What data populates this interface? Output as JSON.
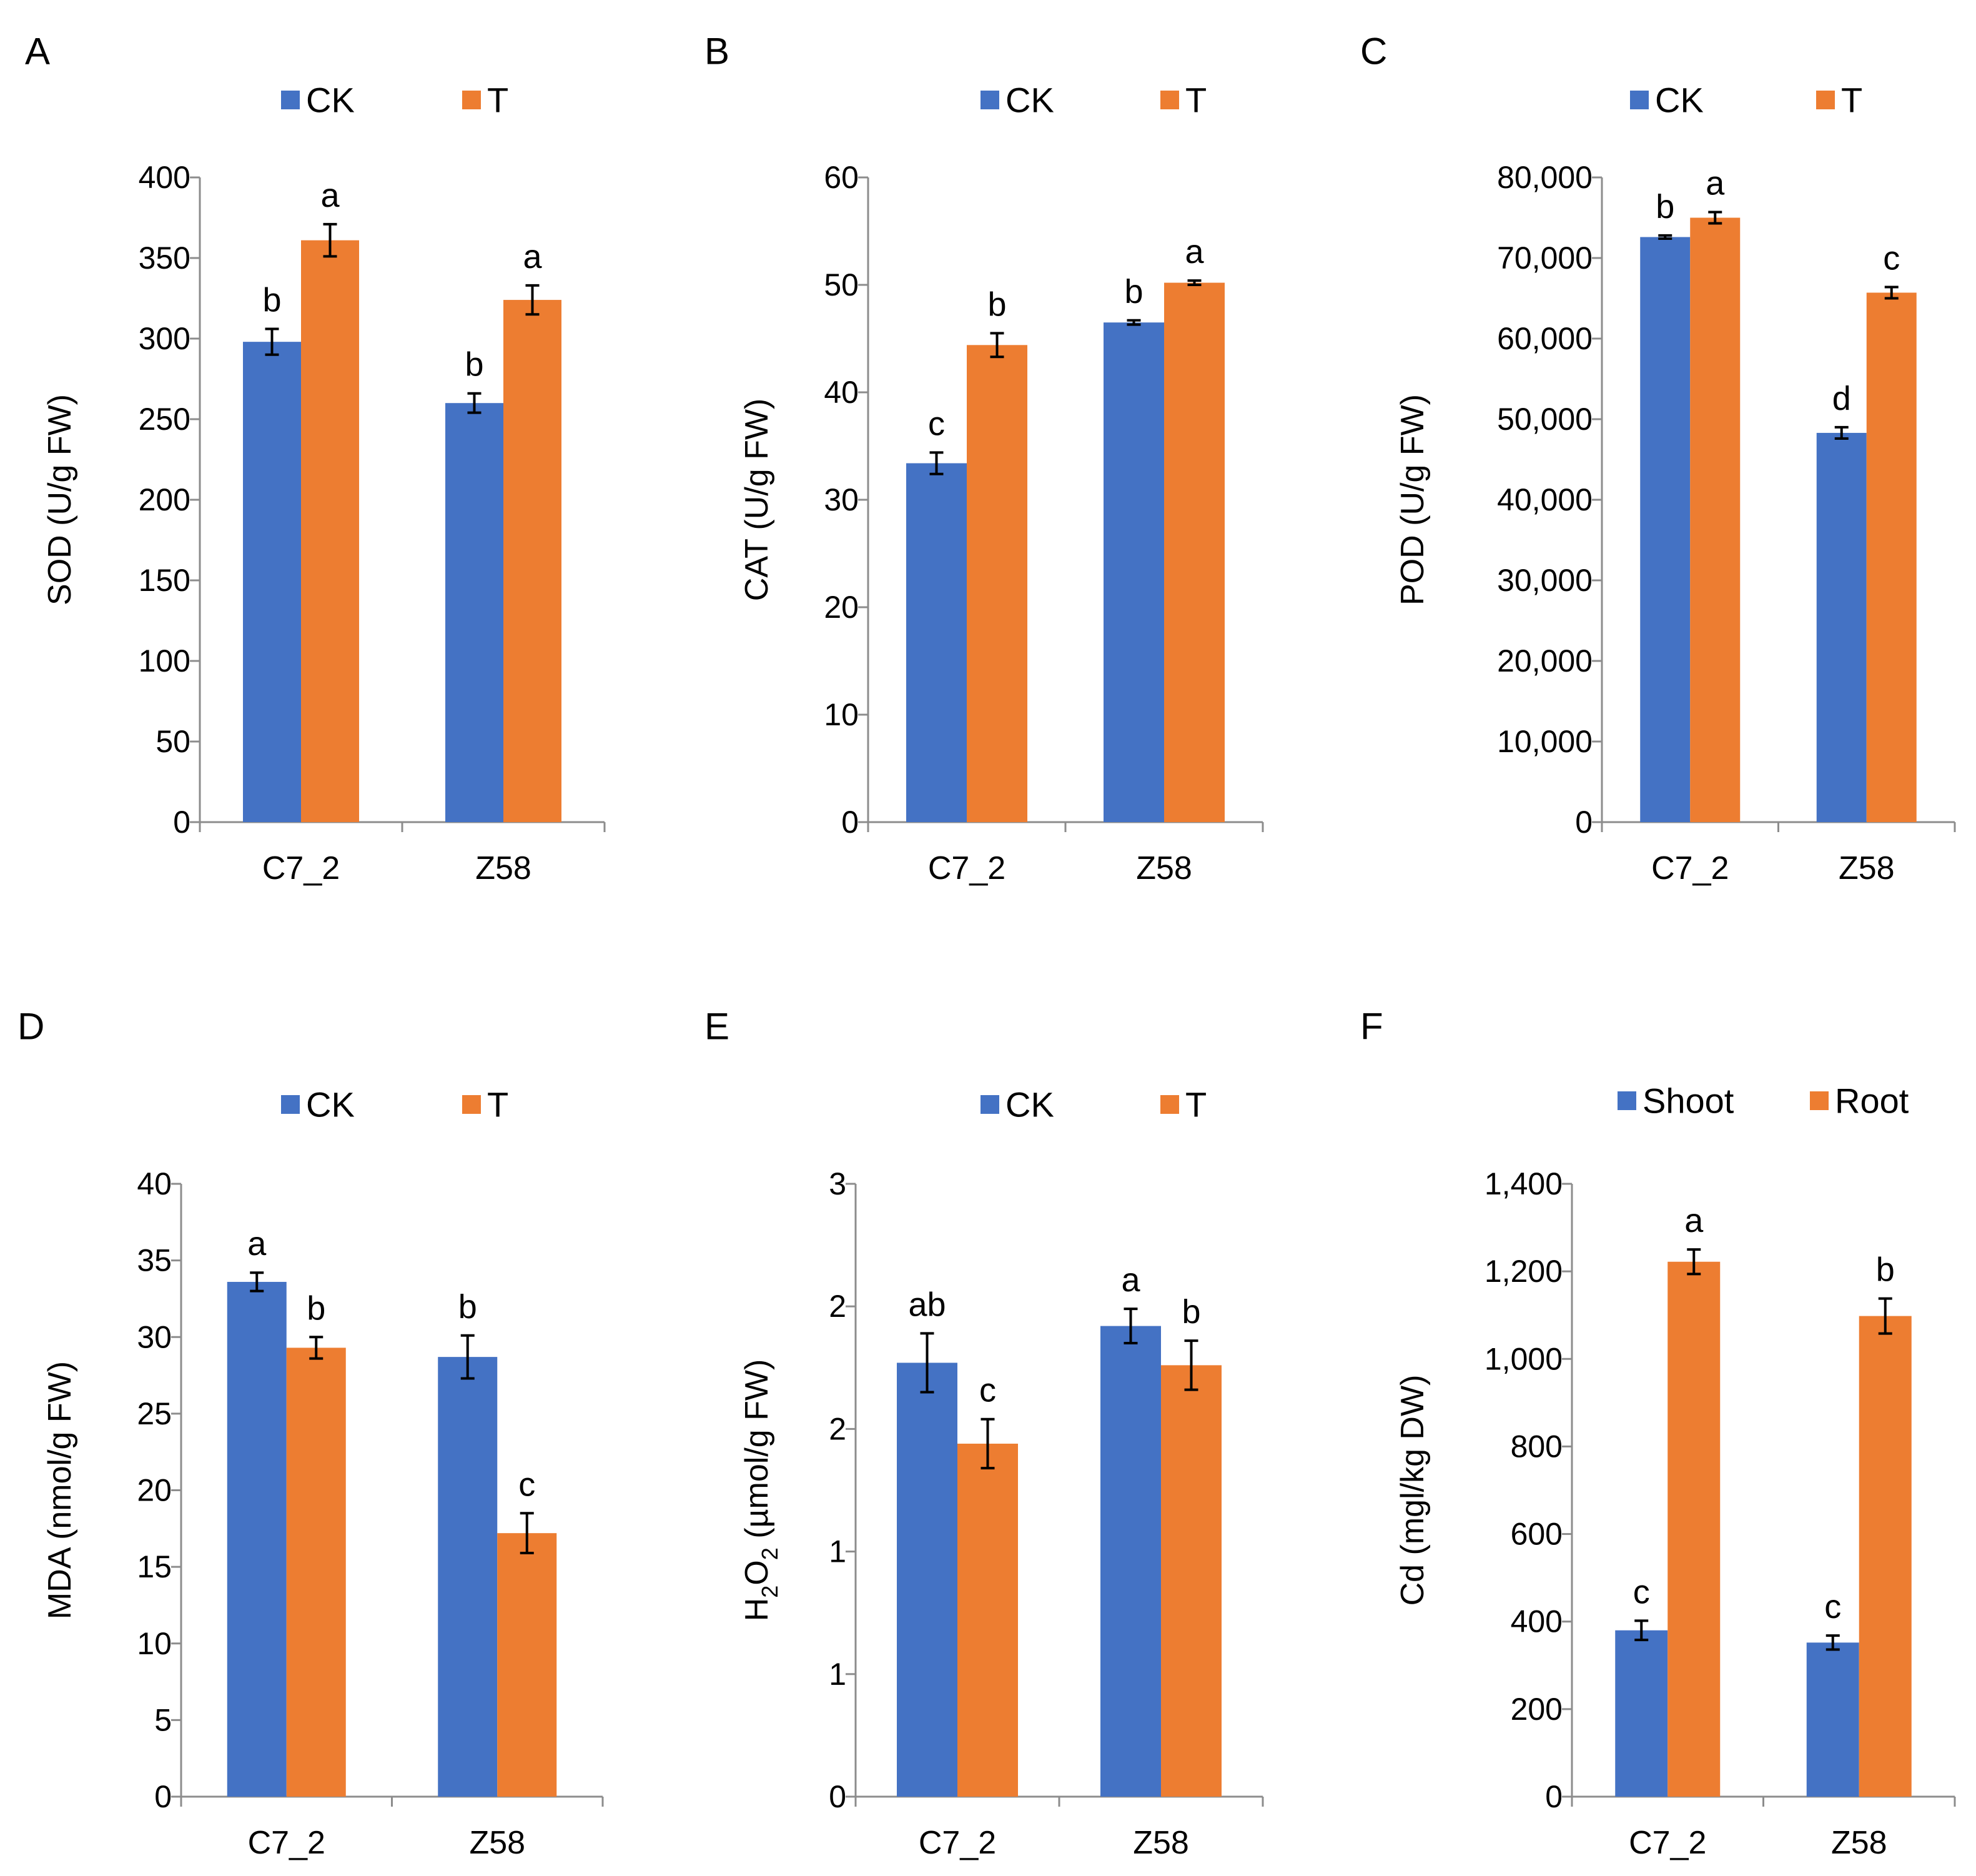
{
  "chart_data": [
    {
      "panel": "A",
      "type": "bar",
      "categories": [
        "C7_2",
        "Z58"
      ],
      "series": [
        {
          "name": "CK",
          "values": [
            298,
            260
          ],
          "errors": [
            8,
            6
          ],
          "letters": [
            "b",
            "b"
          ]
        },
        {
          "name": "T",
          "values": [
            361,
            324
          ],
          "errors": [
            10,
            9
          ],
          "letters": [
            "a",
            "a"
          ]
        }
      ],
      "ylabel": "SOD (U/g FW)",
      "ylim": [
        0,
        400
      ],
      "ticks": [
        0,
        50,
        100,
        150,
        200,
        250,
        300,
        350,
        400
      ],
      "tick_labels": [
        "0",
        "50",
        "100",
        "150",
        "200",
        "250",
        "300",
        "350",
        "400"
      ],
      "legend": "top"
    },
    {
      "panel": "B",
      "type": "bar",
      "categories": [
        "C7_2",
        "Z58"
      ],
      "series": [
        {
          "name": "CK",
          "values": [
            33.4,
            46.5
          ],
          "errors": [
            1,
            0.2
          ],
          "letters": [
            "c",
            "b"
          ]
        },
        {
          "name": "T",
          "values": [
            44.4,
            50.2
          ],
          "errors": [
            1.1,
            0.2
          ],
          "letters": [
            "b",
            "a"
          ]
        }
      ],
      "ylabel": "CAT (U/g FW)",
      "ylim": [
        0,
        60
      ],
      "ticks": [
        0,
        10,
        20,
        30,
        40,
        50,
        60
      ],
      "tick_labels": [
        "0",
        "10",
        "20",
        "30",
        "40",
        "50",
        "60"
      ],
      "legend": "top"
    },
    {
      "panel": "C",
      "type": "bar",
      "categories": [
        "C7_2",
        "Z58"
      ],
      "series": [
        {
          "name": "CK",
          "values": [
            72600,
            48300
          ],
          "errors": [
            200,
            700
          ],
          "letters": [
            "b",
            "d"
          ]
        },
        {
          "name": "T",
          "values": [
            75000,
            65700
          ],
          "errors": [
            700,
            700
          ],
          "letters": [
            "a",
            "c"
          ]
        }
      ],
      "ylabel": "POD (U/g FW)",
      "ylim": [
        0,
        80000
      ],
      "ticks": [
        0,
        10000,
        20000,
        30000,
        40000,
        50000,
        60000,
        70000,
        80000
      ],
      "tick_labels": [
        "0",
        "10,000",
        "20,000",
        "30,000",
        "40,000",
        "50,000",
        "60,000",
        "70,000",
        "80,000"
      ],
      "legend": "top"
    },
    {
      "panel": "D",
      "type": "bar",
      "categories": [
        "C7_2",
        "Z58"
      ],
      "series": [
        {
          "name": "CK",
          "values": [
            33.6,
            28.7
          ],
          "errors": [
            0.6,
            1.4
          ],
          "letters": [
            "a",
            "b"
          ]
        },
        {
          "name": "T",
          "values": [
            29.3,
            17.2
          ],
          "errors": [
            0.7,
            1.3
          ],
          "letters": [
            "b",
            "c"
          ]
        }
      ],
      "ylabel": "MDA (nmol/g FW)",
      "ylim": [
        0,
        40
      ],
      "ticks": [
        0,
        5,
        10,
        15,
        20,
        25,
        30,
        35,
        40
      ],
      "tick_labels": [
        "0",
        "5",
        "10",
        "15",
        "20",
        "25",
        "30",
        "35",
        "40"
      ],
      "legend": "top"
    },
    {
      "panel": "E",
      "type": "bar",
      "categories": [
        "C7_2",
        "Z58"
      ],
      "series": [
        {
          "name": "CK",
          "values": [
            1.77,
            1.92
          ],
          "errors": [
            0.12,
            0.07
          ],
          "letters": [
            "ab",
            "a"
          ]
        },
        {
          "name": "T",
          "values": [
            1.44,
            1.76
          ],
          "errors": [
            0.1,
            0.1
          ],
          "letters": [
            "c",
            "b"
          ]
        }
      ],
      "ylabel_main": "H",
      "ylabel_sub1": "2",
      "ylabel_mid": "O",
      "ylabel_sub2": "2",
      "ylabel_tail": " (µmol/g FW)",
      "ylim": [
        0,
        2.5
      ],
      "ticks": [
        0,
        0.5,
        1,
        1.5,
        2,
        2.5
      ],
      "tick_labels": [
        "0",
        "1",
        "1",
        "2",
        "2",
        "3"
      ],
      "legend": "top"
    },
    {
      "panel": "F",
      "type": "bar",
      "categories": [
        "C7_2",
        "Z58"
      ],
      "series": [
        {
          "name": "Shoot",
          "values": [
            380,
            352
          ],
          "errors": [
            22,
            16
          ],
          "letters": [
            "c",
            "c"
          ]
        },
        {
          "name": "Root",
          "values": [
            1222,
            1098
          ],
          "errors": [
            28,
            40
          ],
          "letters": [
            "a",
            "b"
          ]
        }
      ],
      "ylabel": "Cd (mgl/kg DW)",
      "ylim": [
        0,
        1400
      ],
      "ticks": [
        0,
        200,
        400,
        600,
        800,
        1000,
        1200,
        1400
      ],
      "tick_labels": [
        "0",
        "200",
        "400",
        "600",
        "800",
        "1,000",
        "1,200",
        "1,400"
      ],
      "legend": "top"
    }
  ],
  "colors": {
    "series1": "#4472c4",
    "series2": "#ed7d31",
    "axis": "#8c8c8c",
    "text": "#000000"
  }
}
